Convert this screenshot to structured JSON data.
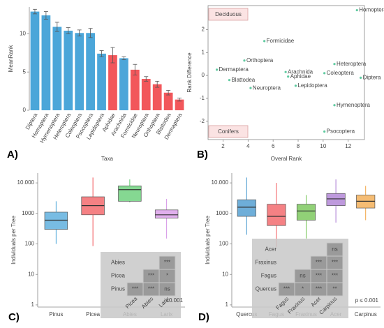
{
  "chart_data": [
    {
      "type": "bar",
      "panel": "A)",
      "xlabel": "Taxa",
      "ylabel": "MeanRank",
      "categories": [
        "Diptera",
        "Homoptera",
        "Hymenoptera",
        "Heteroptera",
        "Coleoptera",
        "Psocoptera",
        "Lepidoptera",
        "Aphidae",
        "Arachnida",
        "Formicidae",
        "Neuroptera",
        "Orthoptera",
        "Blattodea",
        "Dermaptera"
      ],
      "values": [
        12.9,
        12.4,
        10.9,
        10.4,
        10.1,
        10.1,
        7.4,
        7.2,
        6.8,
        5.3,
        4.1,
        3.4,
        2.3,
        1.4
      ],
      "errors": [
        0.3,
        0.5,
        0.6,
        0.4,
        0.4,
        0.6,
        0.4,
        1.0,
        0.2,
        0.7,
        0.3,
        0.4,
        0.3,
        0.2
      ],
      "colors": [
        "#4ba6d9",
        "#4ba6d9",
        "#4ba6d9",
        "#4ba6d9",
        "#4ba6d9",
        "#4ba6d9",
        "#4ba6d9",
        "#f2575b",
        "#4ba6d9",
        "#f2575b",
        "#f2575b",
        "#f2575b",
        "#f2575b",
        "#f2575b"
      ],
      "ylim": [
        0,
        13.5
      ],
      "yticks": [
        0,
        5,
        10
      ]
    },
    {
      "type": "scatter",
      "panel": "B)",
      "xlabel": "Overal Rank",
      "ylabel": "Rank Difference",
      "labels": [
        "Homoptera",
        "Formicidae",
        "Orthoptera",
        "Dermaptera",
        "Blattodea",
        "Neuroptera",
        "Arachnida",
        "Aphidae",
        "Lepidoptera",
        "Heteroptera",
        "Coleoptera",
        "Diptera",
        "Hymenoptera",
        "Psocoptera"
      ],
      "x": [
        12.7,
        5.3,
        3.7,
        1.5,
        2.5,
        4.2,
        7.0,
        7.2,
        7.8,
        10.9,
        10.1,
        13.0,
        10.9,
        10.1
      ],
      "y": [
        2.85,
        1.5,
        0.65,
        0.25,
        -0.2,
        -0.55,
        0.15,
        -0.05,
        -0.45,
        0.5,
        0.1,
        -0.1,
        -1.3,
        -2.45
      ],
      "color": "#5fcaa0",
      "annotations": [
        {
          "text": "Deciduous"
        },
        {
          "text": "Conifers"
        }
      ],
      "xlim": [
        0.8,
        13.3
      ],
      "xticks": [
        2,
        4,
        6,
        8,
        10,
        12
      ],
      "ylim": [
        -2.8,
        3.05
      ],
      "yticks": [
        -2,
        -1,
        0,
        1,
        2
      ]
    },
    {
      "type": "box",
      "panel": "C)",
      "ylabel": "Individuals per Tree",
      "log_y": true,
      "categories": [
        "Pinus",
        "Picea",
        "Abies",
        "Larix"
      ],
      "colors": [
        "#4ba6d9",
        "#f2575b",
        "#5ccb6e",
        "#d594e6"
      ],
      "boxes": [
        {
          "whislo": 100,
          "q1": 300,
          "median": 600,
          "q3": 1100,
          "whishi": 2500
        },
        {
          "whislo": 85,
          "q1": 900,
          "median": 1800,
          "q3": 3500,
          "whishi": 15000
        },
        {
          "whislo": 2300,
          "q1": 2500,
          "median": 6000,
          "q3": 8000,
          "whishi": 13000
        },
        {
          "whislo": 150,
          "q1": 700,
          "median": 900,
          "q3": 1300,
          "whishi": 3000
        }
      ],
      "ylim": [
        0.85,
        21000
      ],
      "yticks": [
        1,
        10,
        100,
        1000,
        {
          "value": 10000,
          "label": "10.000"
        }
      ],
      "inset": {
        "columns": [
          "Picea",
          "Abies",
          "Larix"
        ],
        "rows": [
          {
            "label": "Abies",
            "cells": [
              "***"
            ]
          },
          {
            "label": "Picea",
            "cells": [
              "***",
              "*"
            ]
          },
          {
            "label": "Pinus",
            "cells": [
              "***",
              "***",
              "ns"
            ]
          }
        ]
      },
      "note": "≤0.001"
    },
    {
      "type": "box",
      "panel": "D)",
      "ylabel": "Individuals per Tree",
      "log_y": true,
      "categories": [
        "Quercus",
        "Fagus",
        "Fraxinus",
        "Acer",
        "Carpinus"
      ],
      "colors": [
        "#3d93cc",
        "#f2575b",
        "#6cc24a",
        "#a877d1",
        "#f2a544"
      ],
      "boxes": [
        {
          "whislo": 200,
          "q1": 800,
          "median": 1600,
          "q3": 2800,
          "whishi": 15000
        },
        {
          "whislo": 80,
          "q1": 400,
          "median": 800,
          "q3": 2000,
          "whishi": 10000
        },
        {
          "whislo": 150,
          "q1": 600,
          "median": 1200,
          "q3": 2000,
          "whishi": 4000
        },
        {
          "whislo": 500,
          "q1": 1800,
          "median": 3000,
          "q3": 4500,
          "whishi": 13000
        },
        {
          "whislo": 600,
          "q1": 1500,
          "median": 2500,
          "q3": 4000,
          "whishi": 8000
        }
      ],
      "ylim": [
        0.85,
        21000
      ],
      "yticks": [
        1,
        10,
        100,
        1000,
        {
          "value": 10000,
          "label": "10.000"
        }
      ],
      "inset": {
        "columns": [
          "Fagus",
          "Fraxinus",
          "Acer",
          "Carpinus"
        ],
        "rows": [
          {
            "label": "Acer",
            "cells": [
              "ns"
            ]
          },
          {
            "label": "Fraxinus",
            "cells": [
              "***",
              "***"
            ]
          },
          {
            "label": "Fagus",
            "cells": [
              "ns",
              "***",
              "***"
            ]
          },
          {
            "label": "Quercus",
            "cells": [
              "***",
              "*",
              "***",
              "**"
            ]
          }
        ]
      },
      "note": "p ≤ 0.001"
    }
  ]
}
